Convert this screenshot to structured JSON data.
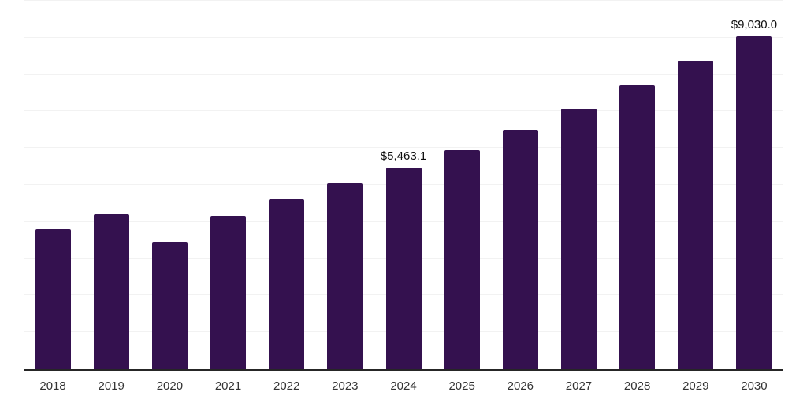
{
  "chart_data": {
    "type": "bar",
    "title": "",
    "xlabel": "",
    "ylabel": "",
    "categories": [
      "2018",
      "2019",
      "2020",
      "2021",
      "2022",
      "2023",
      "2024",
      "2025",
      "2026",
      "2027",
      "2028",
      "2029",
      "2030"
    ],
    "values": [
      3810,
      4200,
      3450,
      4140,
      4620,
      5050,
      5463.1,
      5950,
      6490,
      7080,
      7720,
      8370,
      9030.0
    ],
    "data_labels": [
      {
        "category": "2024",
        "text": "$5,463.1"
      },
      {
        "category": "2030",
        "text": "$9,030.0"
      }
    ],
    "ylim": [
      0,
      10000
    ],
    "gridline_step": 1000,
    "grid": true,
    "legend": false,
    "y_axis_tick_labels_visible": false,
    "colors": {
      "bar": "#34114f",
      "gridline": "#f2f2f2",
      "axis_line": "#262626",
      "data_label": "#0d0d0d",
      "tick_label": "#333333",
      "background": "#ffffff"
    }
  }
}
